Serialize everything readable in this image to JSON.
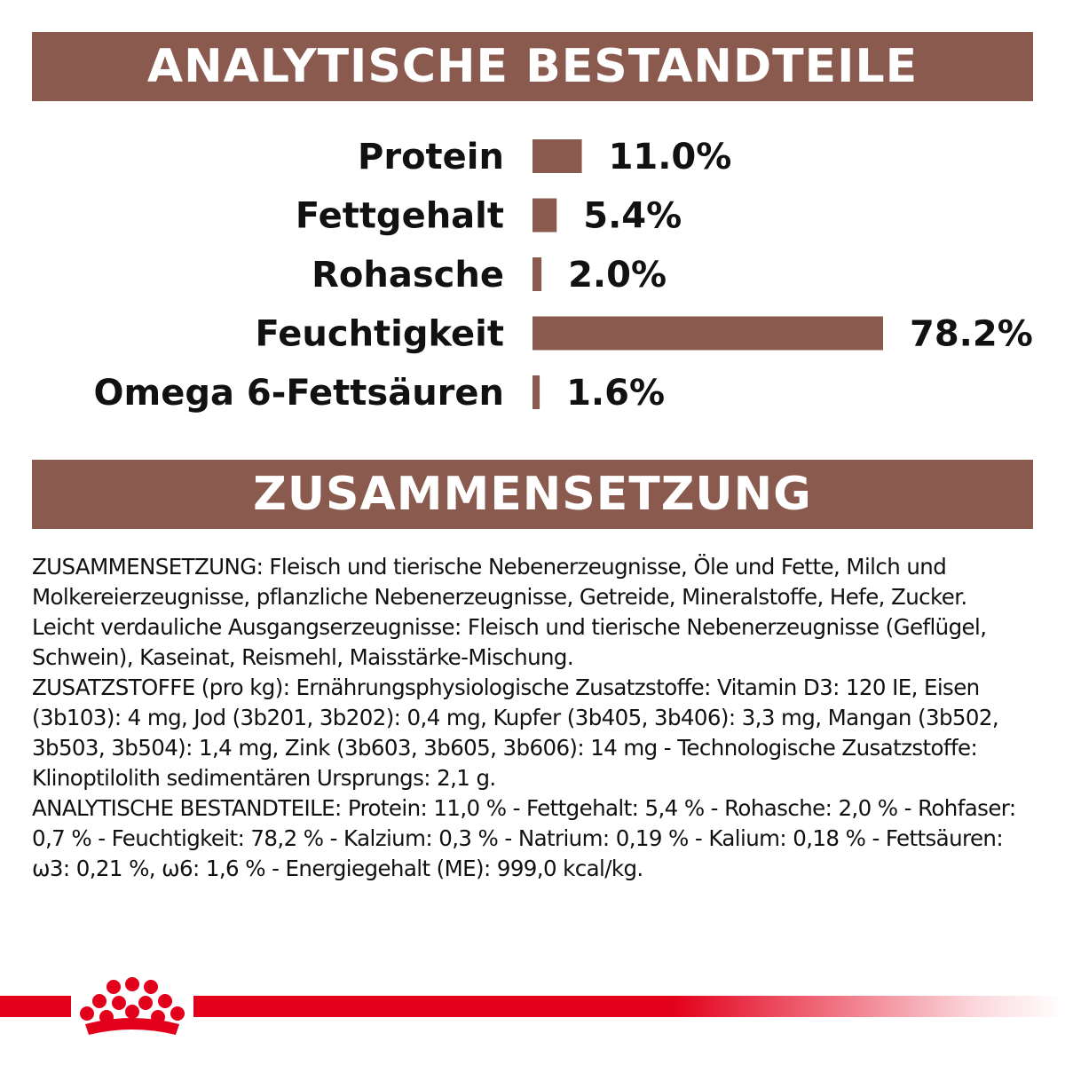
{
  "header_analytic": "ANALYTISCHE BESTANDTEILE",
  "header_composition": "ZUSAMMENSETZUNG",
  "chart_data": {
    "type": "bar",
    "orientation": "horizontal",
    "title": "ANALYTISCHE BESTANDTEILE",
    "categories": [
      "Protein",
      "Fettgehalt",
      "Rohasche",
      "Feuchtigkeit",
      "Omega 6-Fettsäuren"
    ],
    "values": [
      11.0,
      5.4,
      2.0,
      78.2,
      1.6
    ],
    "value_labels": [
      "11.0%",
      "5.4%",
      "2.0%",
      "78.2%",
      "1.6%"
    ],
    "unit": "%",
    "xlim": [
      0,
      78.2
    ],
    "grid": false,
    "bar_color": "#8b5a4f"
  },
  "composition_paragraphs": [
    "ZUSAMMENSETZUNG: Fleisch und tierische Nebenerzeugnisse, Öle und Fette, Milch und Molkereierzeugnisse, pflanzliche Nebenerzeugnisse, Getreide, Mineralstoffe, Hefe, Zucker. Leicht verdauliche Ausgangserzeugnisse: Fleisch und tierische Nebenerzeugnisse (Geflügel, Schwein), Kaseinat, Reismehl, Maisstärke-Mischung.",
    "ZUSATZSTOFFE (pro kg): Ernährungsphysiologische Zusatzstoffe: Vitamin D3: 120 IE, Eisen (3b103): 4 mg, Jod (3b201, 3b202): 0,4 mg, Kupfer (3b405, 3b406): 3,3 mg, Mangan (3b502, 3b503, 3b504): 1,4 mg, Zink (3b603, 3b605, 3b606): 14 mg - Technologische Zusatzstoffe: Klinoptilolith sedimentären Ursprungs: 2,1 g.",
    "ANALYTISCHE BESTANDTEILE: Protein: 11,0 % - Fettgehalt: 5,4 % - Rohasche: 2,0 % - Rohfaser: 0,7 % - Feuchtigkeit: 78,2 % - Kalzium: 0,3 % - Natrium: 0,19 % - Kalium: 0,18 % - Fettsäuren: ω3: 0,21 %, ω6: 1,6 % - Energiegehalt (ME): 999,0 kcal/kg."
  ],
  "brand": {
    "logo_icon": "crown-icon",
    "accent_color": "#e3001b"
  }
}
